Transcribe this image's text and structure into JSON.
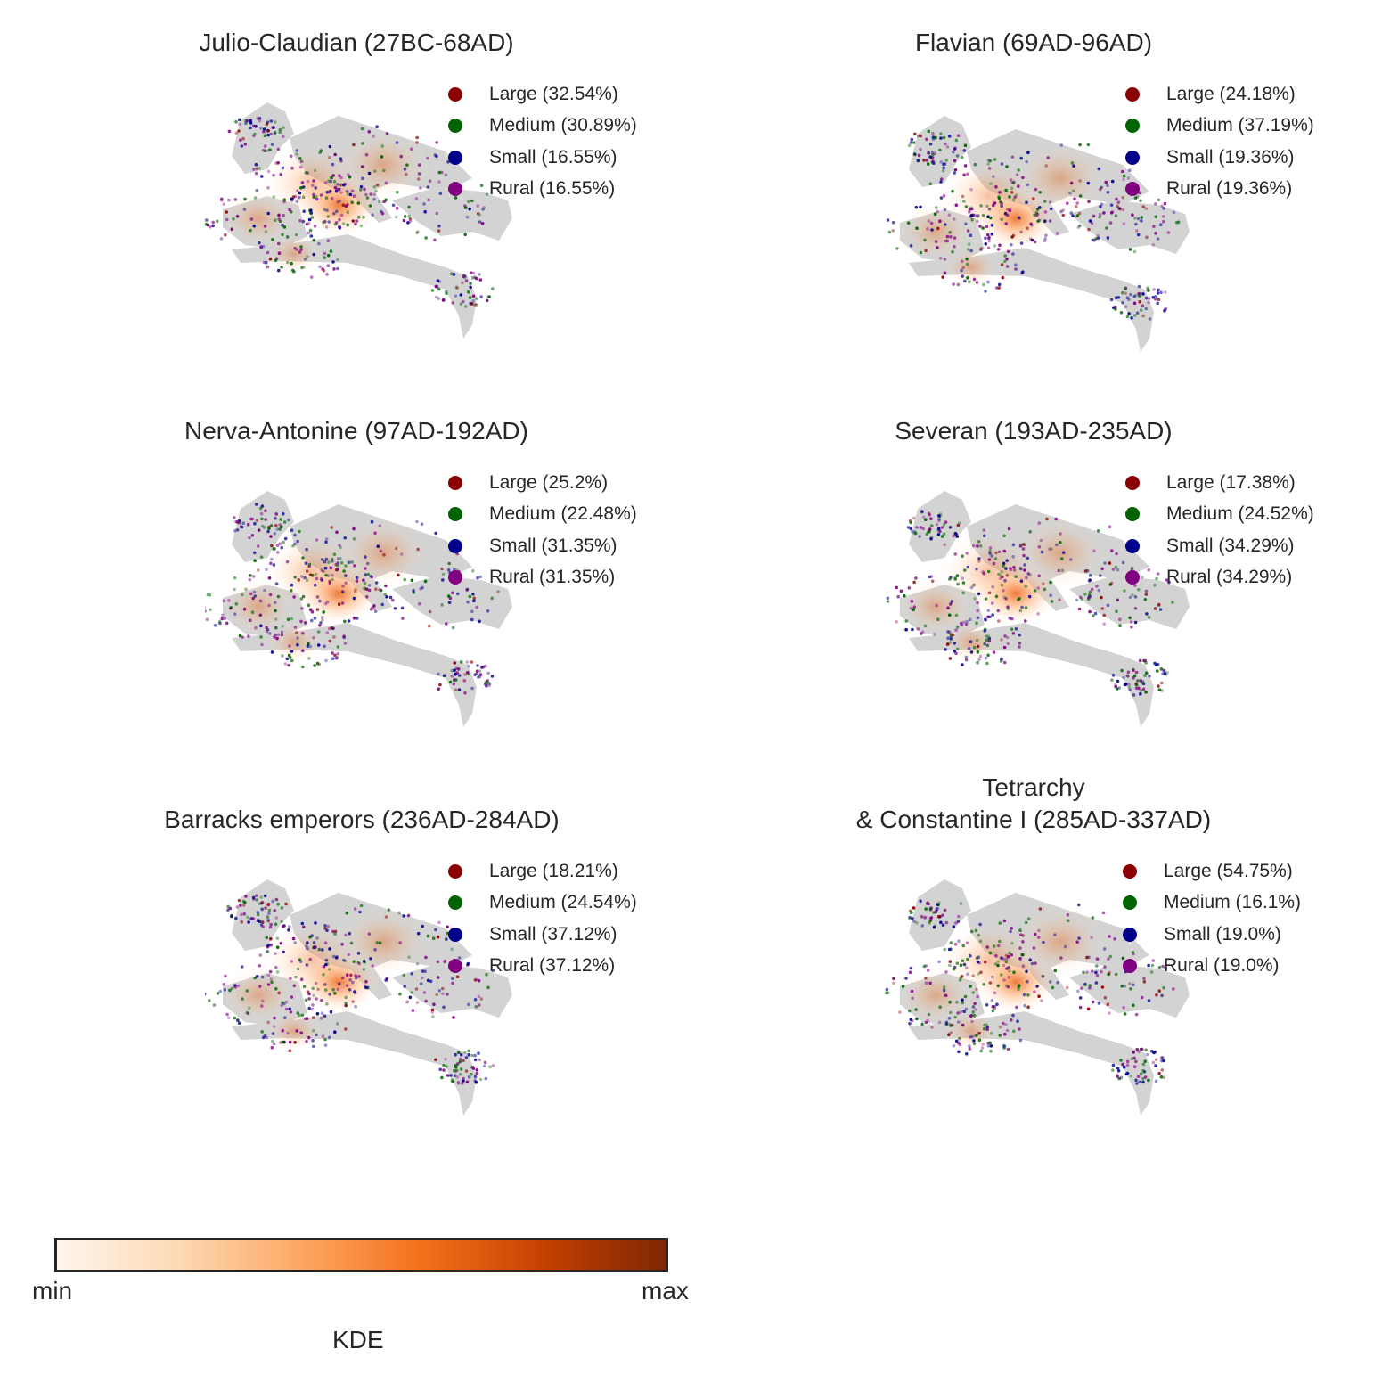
{
  "panels": [
    {
      "title": "Julio-Claudian (27BC-68AD)",
      "legend": [
        "Large (32.54%)",
        "Medium (30.89%)",
        "Small (16.55%)",
        "Rural (16.55%)"
      ]
    },
    {
      "title": "Flavian (69AD-96AD)",
      "legend": [
        "Large (24.18%)",
        "Medium (37.19%)",
        "Small (19.36%)",
        "Rural (19.36%)"
      ]
    },
    {
      "title": "Nerva-Antonine (97AD-192AD)",
      "legend": [
        "Large (25.2%)",
        "Medium (22.48%)",
        "Small (31.35%)",
        "Rural (31.35%)"
      ]
    },
    {
      "title": "Severan (193AD-235AD)",
      "legend": [
        "Large (17.38%)",
        "Medium (24.52%)",
        "Small (34.29%)",
        "Rural (34.29%)"
      ]
    },
    {
      "title": "Barracks emperors (236AD-284AD)",
      "legend": [
        "Large (18.21%)",
        "Medium (24.54%)",
        "Small (37.12%)",
        "Rural (37.12%)"
      ]
    },
    {
      "title": "Tetrarchy\n& Constantine I (285AD-337AD)",
      "legend": [
        "Large (54.75%)",
        "Medium (16.1%)",
        "Small (19.0%)",
        "Rural (19.0%)"
      ]
    }
  ],
  "legend_colors": [
    "#8b0000",
    "#006400",
    "#00008b",
    "#800080"
  ],
  "colorbar": {
    "label": "KDE",
    "min_label": "min",
    "max_label": "max",
    "colormap": "Oranges"
  }
}
